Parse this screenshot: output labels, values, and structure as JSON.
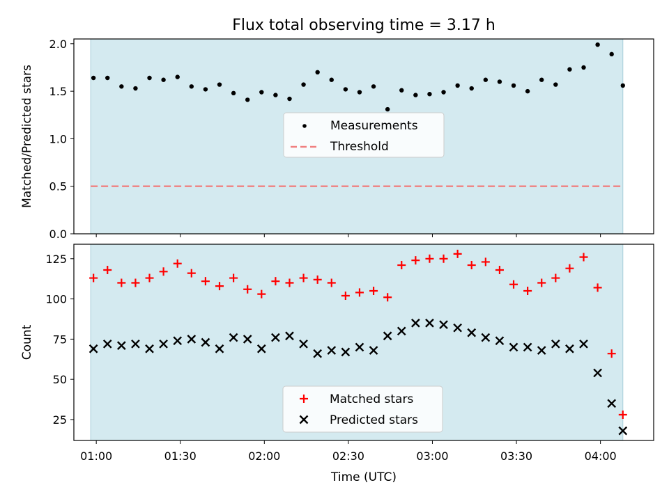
{
  "title": "Flux total observing time = 3.17 h",
  "colors": {
    "observing_band": "#d4eaf0",
    "band_edge": "#a9cfdb",
    "measurements": "#000000",
    "threshold": "#f08080",
    "matched": "#ff0000",
    "predicted": "#000000"
  },
  "chart_data": [
    {
      "type": "scatter",
      "panel": "top",
      "ylabel": "Matched/Predicted stars",
      "ylim": [
        0,
        2.05
      ],
      "yticks": [
        0.0,
        0.5,
        1.0,
        1.5,
        2.0
      ],
      "ytick_labels": [
        "0.0",
        "0.5",
        "1.0",
        "1.5",
        "2.0"
      ],
      "x_time_range": [
        "00:52",
        "04:19"
      ],
      "observing_window": [
        "00:58",
        "04:08"
      ],
      "legend": {
        "placement": "center",
        "entries": [
          "Measurements",
          "Threshold"
        ]
      },
      "series": [
        {
          "name": "Measurements",
          "marker": "dot",
          "x": [
            "00:59",
            "01:04",
            "01:09",
            "01:14",
            "01:19",
            "01:24",
            "01:29",
            "01:34",
            "01:39",
            "01:44",
            "01:49",
            "01:54",
            "01:59",
            "02:04",
            "02:09",
            "02:14",
            "02:19",
            "02:24",
            "02:29",
            "02:34",
            "02:39",
            "02:44",
            "02:49",
            "02:54",
            "02:59",
            "03:04",
            "03:09",
            "03:14",
            "03:19",
            "03:24",
            "03:29",
            "03:34",
            "03:39",
            "03:44",
            "03:49",
            "03:54",
            "03:59",
            "04:04",
            "04:08"
          ],
          "y": [
            1.64,
            1.64,
            1.55,
            1.53,
            1.64,
            1.62,
            1.65,
            1.55,
            1.52,
            1.57,
            1.48,
            1.41,
            1.49,
            1.46,
            1.42,
            1.57,
            1.7,
            1.62,
            1.52,
            1.49,
            1.55,
            1.31,
            1.51,
            1.46,
            1.47,
            1.49,
            1.56,
            1.53,
            1.62,
            1.6,
            1.56,
            1.5,
            1.62,
            1.57,
            1.73,
            1.75,
            1.99,
            1.89,
            1.56
          ]
        },
        {
          "name": "Threshold",
          "marker": "dashed-line",
          "y": 0.5
        }
      ]
    },
    {
      "type": "scatter",
      "panel": "bottom",
      "xlabel": "Time (UTC)",
      "ylabel": "Count",
      "ylim": [
        12,
        134
      ],
      "yticks": [
        25,
        50,
        75,
        100,
        125
      ],
      "ytick_labels": [
        "25",
        "50",
        "75",
        "100",
        "125"
      ],
      "x_time_range": [
        "00:52",
        "04:19"
      ],
      "xticks": [
        "01:00",
        "01:30",
        "02:00",
        "02:30",
        "03:00",
        "03:30",
        "04:00"
      ],
      "observing_window": [
        "00:58",
        "04:08"
      ],
      "legend": {
        "placement": "lower center",
        "entries": [
          "Matched stars",
          "Predicted stars"
        ]
      },
      "series": [
        {
          "name": "Matched stars",
          "marker": "plus",
          "x": [
            "00:59",
            "01:04",
            "01:09",
            "01:14",
            "01:19",
            "01:24",
            "01:29",
            "01:34",
            "01:39",
            "01:44",
            "01:49",
            "01:54",
            "01:59",
            "02:04",
            "02:09",
            "02:14",
            "02:19",
            "02:24",
            "02:29",
            "02:34",
            "02:39",
            "02:44",
            "02:49",
            "02:54",
            "02:59",
            "03:04",
            "03:09",
            "03:14",
            "03:19",
            "03:24",
            "03:29",
            "03:34",
            "03:39",
            "03:44",
            "03:49",
            "03:54",
            "03:59",
            "04:04",
            "04:08"
          ],
          "y": [
            113,
            118,
            110,
            110,
            113,
            117,
            122,
            116,
            111,
            108,
            113,
            106,
            103,
            111,
            110,
            113,
            112,
            110,
            102,
            104,
            105,
            101,
            121,
            124,
            125,
            125,
            128,
            121,
            123,
            118,
            109,
            105,
            110,
            113,
            119,
            126,
            107,
            66,
            28
          ]
        },
        {
          "name": "Predicted stars",
          "marker": "x",
          "x": [
            "00:59",
            "01:04",
            "01:09",
            "01:14",
            "01:19",
            "01:24",
            "01:29",
            "01:34",
            "01:39",
            "01:44",
            "01:49",
            "01:54",
            "01:59",
            "02:04",
            "02:09",
            "02:14",
            "02:19",
            "02:24",
            "02:29",
            "02:34",
            "02:39",
            "02:44",
            "02:49",
            "02:54",
            "02:59",
            "03:04",
            "03:09",
            "03:14",
            "03:19",
            "03:24",
            "03:29",
            "03:34",
            "03:39",
            "03:44",
            "03:49",
            "03:54",
            "03:59",
            "04:04",
            "04:08"
          ],
          "y": [
            69,
            72,
            71,
            72,
            69,
            72,
            74,
            75,
            73,
            69,
            76,
            75,
            69,
            76,
            77,
            72,
            66,
            68,
            67,
            70,
            68,
            77,
            80,
            85,
            85,
            84,
            82,
            79,
            76,
            74,
            70,
            70,
            68,
            72,
            69,
            72,
            54,
            35,
            18
          ]
        }
      ]
    }
  ]
}
